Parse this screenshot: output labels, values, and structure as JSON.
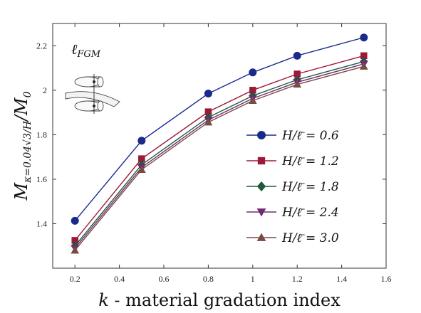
{
  "chart_data": {
    "type": "line",
    "x": [
      0.2,
      0.5,
      0.8,
      1.0,
      1.2,
      1.5
    ],
    "series": [
      {
        "name": "H/ℓ̄ = 0.6",
        "values": [
          1.413,
          1.773,
          1.985,
          2.08,
          2.155,
          2.237
        ],
        "color": "#1a2a8c",
        "marker": "circle"
      },
      {
        "name": "H/ℓ̄ = 1.2",
        "values": [
          1.325,
          1.692,
          1.903,
          2.0,
          2.073,
          2.155
        ],
        "color": "#a01838",
        "marker": "square"
      },
      {
        "name": "H/ℓ̄ = 1.8",
        "values": [
          1.3,
          1.665,
          1.878,
          1.975,
          2.047,
          2.129
        ],
        "color": "#1e5a3a",
        "marker": "diamond"
      },
      {
        "name": "H/ℓ̄ = 2.4",
        "values": [
          1.29,
          1.653,
          1.866,
          1.963,
          2.036,
          2.118
        ],
        "color": "#6b2d70",
        "marker": "triangle-down"
      },
      {
        "name": "H/ℓ̄ = 3.0",
        "values": [
          1.28,
          1.643,
          1.856,
          1.953,
          2.026,
          2.107
        ],
        "color": "#7a4a44",
        "marker": "triangle-up"
      }
    ],
    "xlim": [
      0.1,
      1.6
    ],
    "ylim": [
      1.2,
      2.3
    ],
    "xticks": [
      0.2,
      0.4,
      0.6,
      0.8,
      1.0,
      1.2,
      1.4,
      1.6
    ],
    "xtick_labels": [
      "0.2",
      "0.4",
      "0.6",
      "0.8",
      "1",
      "1.2",
      "1.4",
      "1.6"
    ],
    "yticks": [
      1.4,
      1.6,
      1.8,
      2.0,
      2.2
    ],
    "ytick_labels": [
      "1.4",
      "1.6",
      "1.8",
      "2",
      "2.2"
    ],
    "xlabel_var": "k",
    "xlabel_rest": " - material gradation index",
    "ylabel": "Mκ=0.04√3/H / M0",
    "ylabel_main": "M",
    "ylabel_sub": "κ=0.04√3/H",
    "ylabel_tail": "/M",
    "ylabel_tail_sub": "0",
    "annotation": "ℓFGM",
    "annotation_main": "ℓ",
    "annotation_sub": "FGM",
    "legend_location": "center-right",
    "grid": false,
    "legend_labels": [
      "H/ℓ̄ = 0.6",
      "H/ℓ̄ = 1.2",
      "H/ℓ̄ = 1.8",
      "H/ℓ̄ = 2.4",
      "H/ℓ̄ = 3.0"
    ]
  }
}
